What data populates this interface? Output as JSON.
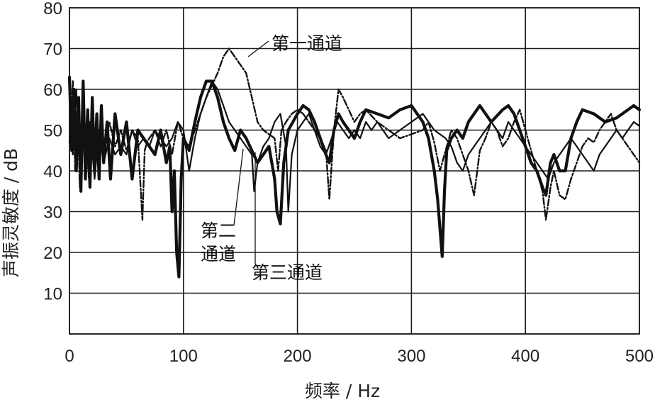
{
  "chart_data": {
    "type": "line",
    "xlabel": "频率 / Hz",
    "ylabel": "声振灵敏度 / dB",
    "xlim": [
      0,
      500
    ],
    "ylim": [
      0,
      80
    ],
    "xticks": [
      "0",
      "100",
      "200",
      "300",
      "400",
      "500"
    ],
    "yticks": [
      "10",
      "20",
      "30",
      "40",
      "50",
      "60",
      "70",
      "80"
    ],
    "grid": true,
    "colors": {
      "ink": "#111111"
    },
    "series": [
      {
        "name": "第一通道",
        "style": "dash-dot",
        "x": [
          0,
          3,
          5,
          7,
          9,
          11,
          13,
          15,
          17,
          20,
          23,
          26,
          30,
          35,
          40,
          45,
          50,
          55,
          60,
          62,
          64,
          66,
          68,
          70,
          75,
          80,
          85,
          90,
          95,
          100,
          105,
          110,
          115,
          120,
          125,
          130,
          135,
          140,
          145,
          150,
          155,
          160,
          165,
          170,
          175,
          180,
          183,
          186,
          190,
          195,
          200,
          205,
          210,
          215,
          220,
          225,
          228,
          232,
          236,
          240,
          245,
          250,
          255,
          260,
          270,
          280,
          290,
          300,
          310,
          315,
          320,
          325,
          330,
          335,
          340,
          345,
          350,
          355,
          360,
          365,
          370,
          375,
          380,
          385,
          390,
          395,
          400,
          405,
          410,
          415,
          418,
          422,
          425,
          430,
          435,
          440,
          445,
          450,
          455,
          460,
          465,
          470,
          475,
          480,
          485,
          490,
          495,
          500
        ],
        "y": [
          47,
          62,
          40,
          58,
          36,
          55,
          44,
          52,
          38,
          50,
          42,
          48,
          44,
          52,
          46,
          50,
          45,
          50,
          48,
          38,
          28,
          45,
          47,
          48,
          50,
          46,
          50,
          44,
          52,
          48,
          46,
          50,
          54,
          58,
          61,
          64,
          68,
          70,
          68,
          66,
          64,
          58,
          52,
          50,
          49,
          48,
          40,
          50,
          52,
          54,
          55,
          54,
          52,
          50,
          48,
          45,
          33,
          50,
          60,
          58,
          55,
          52,
          54,
          55,
          52,
          50,
          48,
          49,
          50,
          52,
          47,
          40,
          45,
          50,
          48,
          44,
          40,
          34,
          45,
          48,
          52,
          50,
          46,
          48,
          52,
          55,
          50,
          45,
          40,
          35,
          28,
          36,
          40,
          34,
          33,
          38,
          42,
          46,
          48,
          47,
          50,
          52,
          54,
          50,
          48,
          46,
          44,
          42
        ]
      },
      {
        "name": "第二通道",
        "style": "solid-thick",
        "x": [
          0,
          2,
          4,
          6,
          8,
          10,
          12,
          14,
          16,
          18,
          20,
          22,
          24,
          26,
          28,
          30,
          33,
          36,
          40,
          45,
          50,
          55,
          60,
          65,
          70,
          75,
          80,
          85,
          88,
          90,
          92,
          94,
          96,
          98,
          100,
          105,
          110,
          115,
          120,
          125,
          130,
          135,
          140,
          145,
          150,
          155,
          160,
          165,
          170,
          175,
          180,
          182,
          185,
          188,
          192,
          196,
          200,
          205,
          210,
          215,
          220,
          225,
          228,
          232,
          236,
          240,
          245,
          250,
          255,
          260,
          270,
          280,
          290,
          300,
          310,
          315,
          320,
          323,
          325,
          327,
          329,
          331,
          335,
          340,
          345,
          350,
          355,
          360,
          370,
          380,
          385,
          390,
          395,
          400,
          405,
          410,
          415,
          418,
          422,
          425,
          430,
          435,
          440,
          445,
          450,
          460,
          470,
          480,
          490,
          495,
          500
        ],
        "y": [
          63,
          45,
          60,
          40,
          58,
          35,
          62,
          38,
          55,
          36,
          58,
          40,
          54,
          38,
          56,
          42,
          52,
          38,
          54,
          44,
          52,
          38,
          50,
          48,
          46,
          44,
          50,
          42,
          46,
          30,
          40,
          20,
          14,
          38,
          48,
          45,
          52,
          58,
          62,
          62,
          58,
          52,
          48,
          45,
          50,
          48,
          45,
          42,
          44,
          46,
          38,
          30,
          27,
          42,
          50,
          52,
          54,
          56,
          55,
          52,
          48,
          44,
          42,
          50,
          54,
          52,
          50,
          48,
          52,
          55,
          54,
          53,
          55,
          56,
          52,
          48,
          40,
          33,
          26,
          19,
          35,
          45,
          48,
          50,
          48,
          52,
          54,
          56,
          52,
          55,
          56,
          54,
          50,
          46,
          42,
          40,
          36,
          34,
          42,
          44,
          40,
          40,
          48,
          52,
          55,
          54,
          52,
          53,
          55,
          56,
          55
        ]
      },
      {
        "name": "第三通道",
        "style": "solid-thin",
        "x": [
          0,
          3,
          6,
          9,
          12,
          15,
          18,
          22,
          26,
          30,
          35,
          40,
          45,
          50,
          55,
          60,
          65,
          70,
          75,
          80,
          85,
          90,
          95,
          100,
          105,
          110,
          115,
          120,
          125,
          130,
          135,
          140,
          145,
          150,
          155,
          160,
          162,
          165,
          170,
          175,
          180,
          185,
          190,
          192,
          195,
          200,
          205,
          210,
          215,
          220,
          225,
          230,
          235,
          240,
          245,
          250,
          255,
          260,
          265,
          270,
          280,
          290,
          300,
          310,
          320,
          330,
          335,
          340,
          345,
          350,
          355,
          360,
          365,
          370,
          375,
          380,
          385,
          390,
          395,
          400,
          405,
          410,
          415,
          420,
          425,
          430,
          435,
          440,
          445,
          450,
          455,
          460,
          465,
          470,
          475,
          480,
          485,
          490,
          495,
          500
        ],
        "y": [
          50,
          44,
          60,
          42,
          56,
          40,
          52,
          38,
          50,
          42,
          48,
          44,
          46,
          44,
          50,
          46,
          48,
          46,
          50,
          48,
          46,
          48,
          52,
          50,
          40,
          48,
          54,
          58,
          62,
          60,
          56,
          52,
          50,
          48,
          46,
          44,
          35,
          42,
          46,
          48,
          52,
          54,
          46,
          30,
          44,
          50,
          52,
          54,
          50,
          46,
          44,
          48,
          52,
          50,
          48,
          50,
          48,
          52,
          50,
          52,
          48,
          50,
          52,
          54,
          50,
          48,
          46,
          42,
          40,
          44,
          46,
          48,
          50,
          52,
          50,
          48,
          52,
          50,
          48,
          46,
          44,
          42,
          40,
          38,
          42,
          44,
          46,
          48,
          46,
          44,
          42,
          40,
          44,
          46,
          48,
          50,
          48,
          50,
          52,
          51
        ]
      }
    ],
    "annotations": {
      "ch1": "第一通道",
      "ch2_line1": "第二",
      "ch2_line2": "通道",
      "ch3": "第三通道"
    }
  }
}
